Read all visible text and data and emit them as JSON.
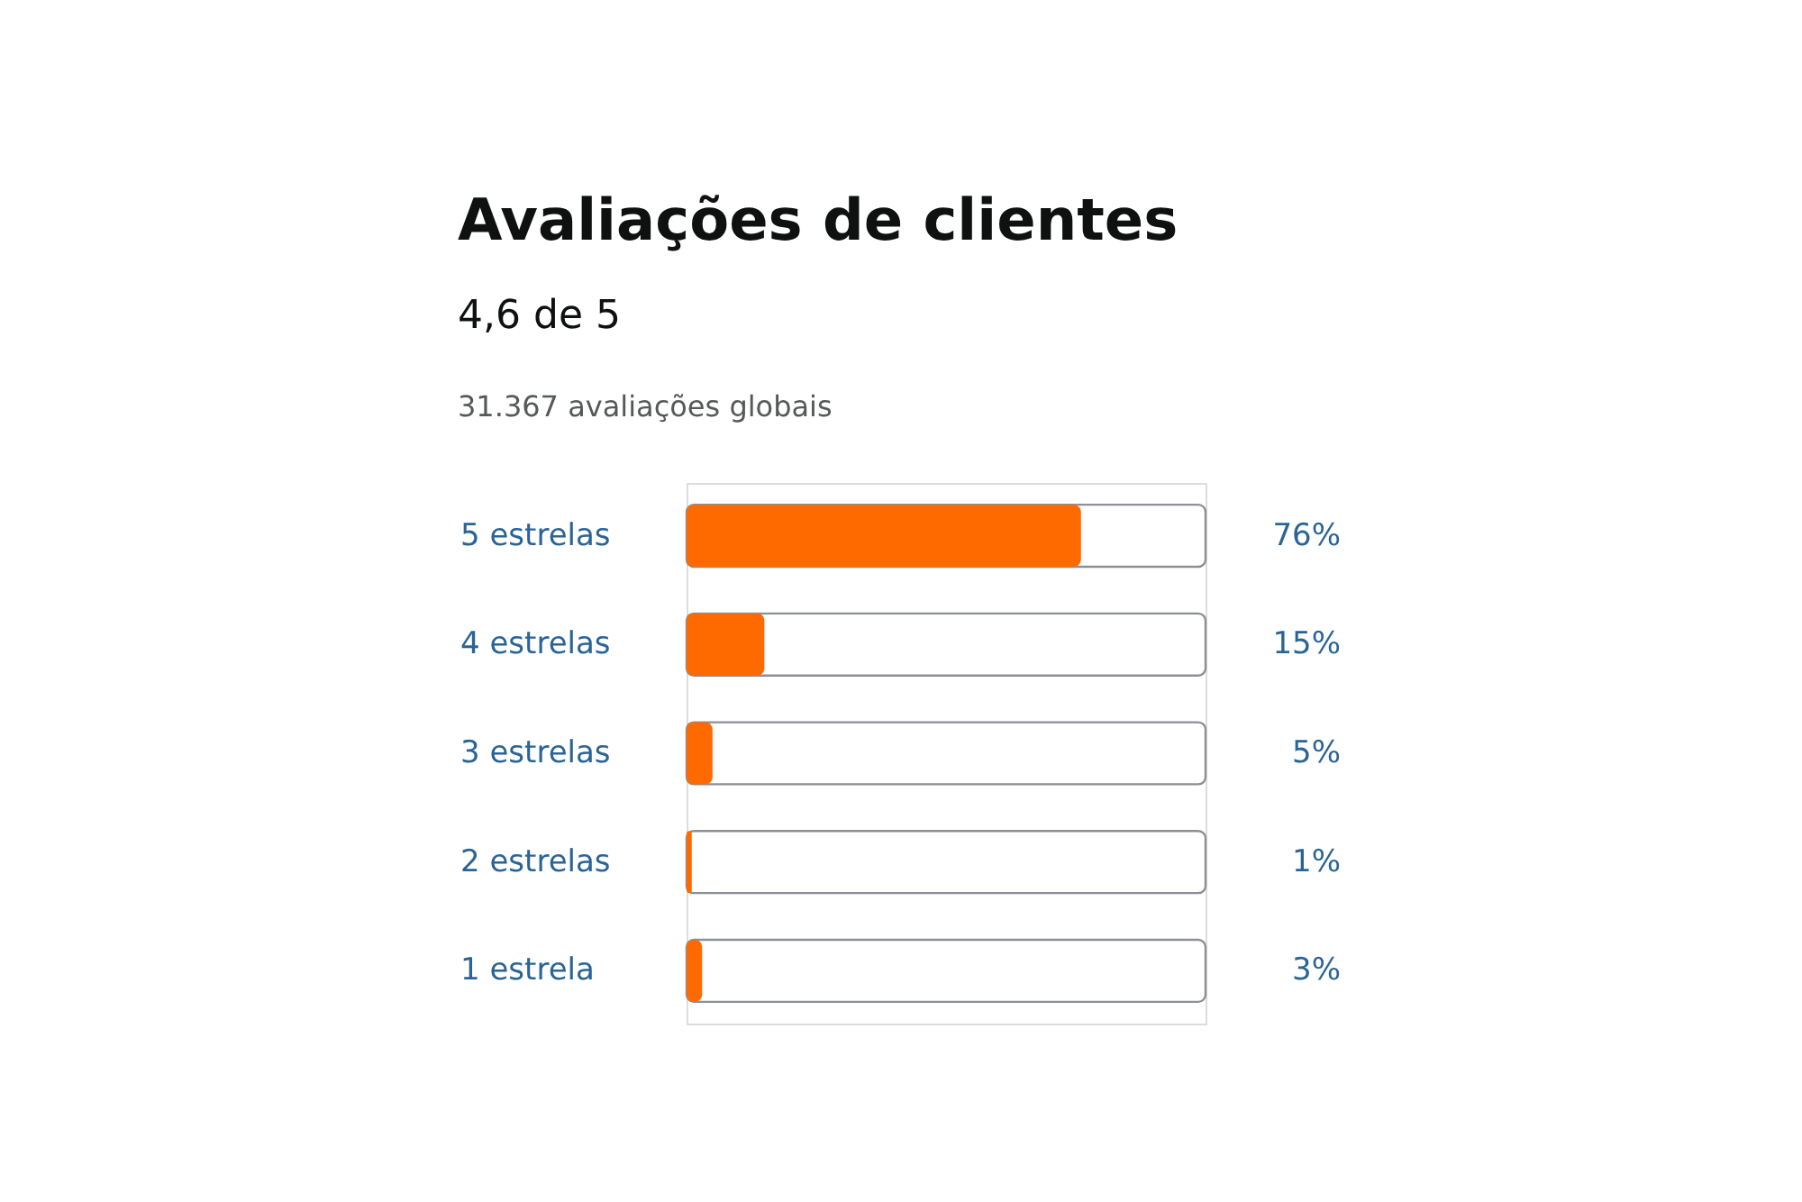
{
  "chart_data": {
    "type": "bar",
    "orientation": "horizontal",
    "title": "Avaliações de clientes",
    "subtitle": "4,6 de 5",
    "annotations": [
      "31.367 avaliações globais"
    ],
    "categories": [
      "5 estrelas",
      "4 estrelas",
      "3 estrelas",
      "2 estrelas",
      "1 estrela"
    ],
    "values": [
      76,
      15,
      5,
      1,
      3
    ],
    "value_labels": [
      "76%",
      "15%",
      "5%",
      "1%",
      "3%"
    ],
    "color": "#ff6a00",
    "xlim": [
      0,
      100
    ],
    "tick_labels": "y"
  }
}
